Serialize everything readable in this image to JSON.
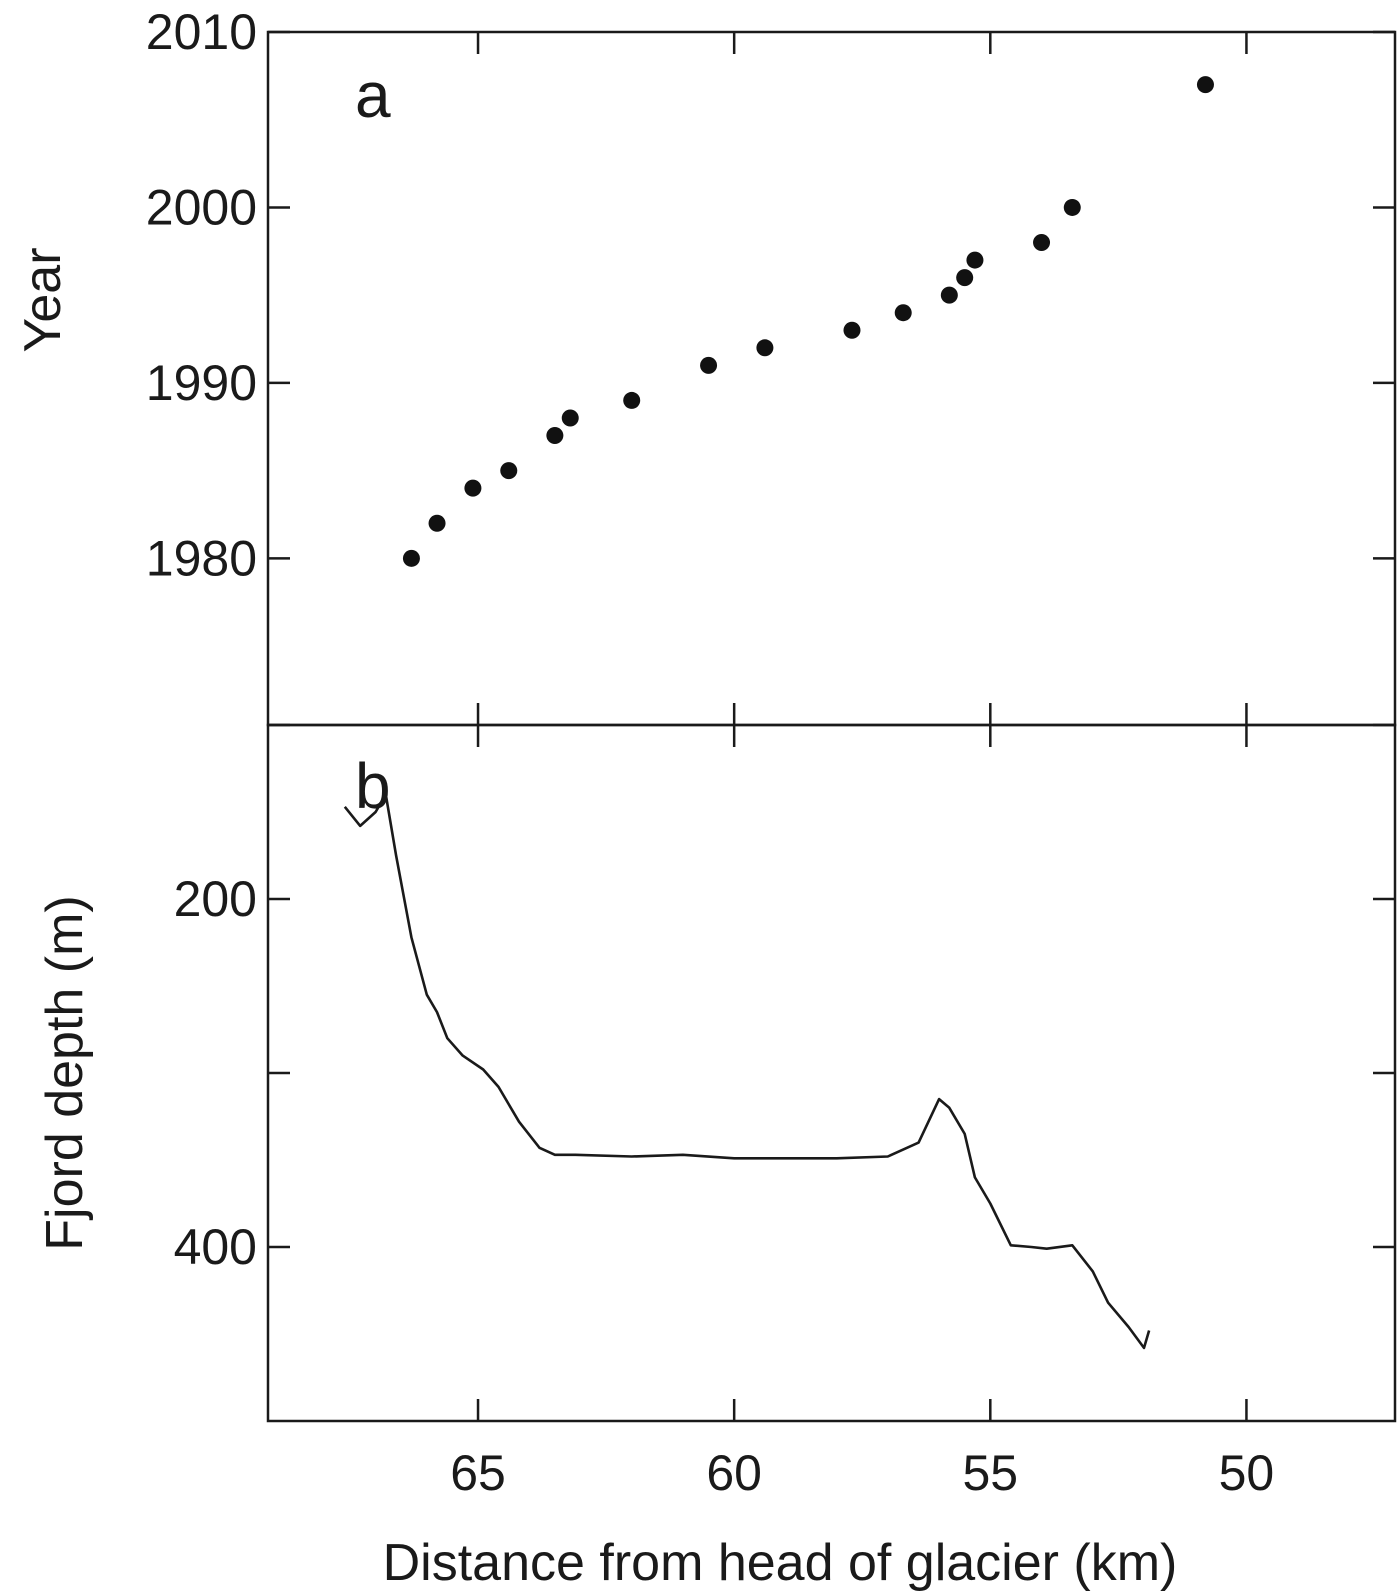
{
  "chart_data": [
    {
      "type": "scatter",
      "panel_letter": "a",
      "xlabel": "Distance from head of glacier (km)",
      "ylabel": "Year",
      "x_reversed": true,
      "xlim": [
        69.1,
        47.1
      ],
      "ylim": [
        1970.5,
        2010
      ],
      "x_ticks": [
        65,
        60,
        55,
        50
      ],
      "y_ticks": [
        1980,
        1990,
        2000,
        2010
      ],
      "y_tick_labels": [
        "1980",
        "1990",
        "2000",
        "2010"
      ],
      "grid": false,
      "series": [
        {
          "x": [
            66.3,
            65.8,
            65.1,
            64.4,
            63.5,
            63.2,
            62.0,
            60.5,
            59.4,
            57.7,
            56.7,
            55.8,
            55.5,
            55.3,
            54.0,
            53.4,
            50.8
          ],
          "y": [
            1980,
            1982,
            1984,
            1985,
            1987,
            1988,
            1989,
            1991,
            1992,
            1993,
            1994,
            1995,
            1996,
            1997,
            1998,
            2000,
            2007
          ]
        }
      ]
    },
    {
      "type": "line",
      "panel_letter": "b",
      "xlabel": "Distance from head of glacier (km)",
      "ylabel": "Fjord depth (m)",
      "x_reversed": true,
      "y_reversed": true,
      "xlim": [
        69.1,
        47.1
      ],
      "ylim": [
        100,
        500
      ],
      "x_ticks": [
        65,
        60,
        55,
        50
      ],
      "x_tick_labels": [
        "65",
        "60",
        "55",
        "50"
      ],
      "y_ticks": [
        100,
        200,
        300,
        400
      ],
      "y_tick_labels": [
        "",
        "200",
        "",
        "400"
      ],
      "grid": false,
      "series": [
        {
          "x": [
            67.6,
            67.3,
            67.0,
            66.8,
            66.6,
            66.3,
            66.0,
            65.8,
            65.6,
            65.3,
            64.9,
            64.6,
            64.2,
            63.8,
            63.5,
            63.1,
            62.0,
            61.0,
            60.0,
            59.0,
            58.0,
            57.0,
            56.4,
            56.0,
            55.8,
            55.5,
            55.3,
            55.0,
            54.6,
            54.2,
            53.9,
            53.4,
            53.0,
            52.7,
            52.3,
            52.0,
            51.9
          ],
          "y": [
            147,
            158,
            150,
            140,
            175,
            222,
            255,
            265,
            280,
            290,
            298,
            308,
            328,
            343,
            347,
            347,
            348,
            347,
            349,
            349,
            349,
            348,
            340,
            315,
            320,
            335,
            360,
            375,
            399,
            400,
            401,
            399,
            414,
            432,
            446,
            458,
            448
          ]
        }
      ]
    }
  ]
}
